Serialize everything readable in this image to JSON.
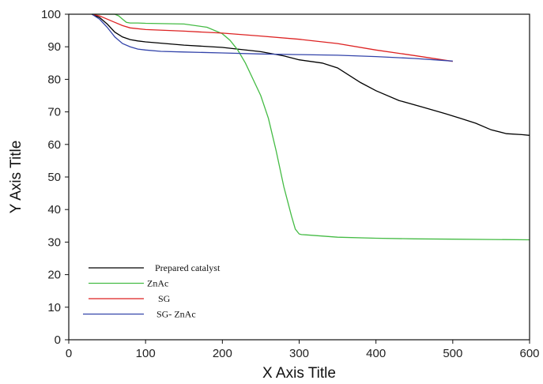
{
  "chart_data": {
    "type": "line",
    "title": "",
    "xlabel": "X Axis Title",
    "ylabel": "Y Axis Title",
    "xlim": [
      0,
      600
    ],
    "ylim": [
      0,
      100
    ],
    "xticks": [
      "0",
      "100",
      "200",
      "300",
      "400",
      "500",
      "600"
    ],
    "yticks": [
      "0",
      "10",
      "20",
      "30",
      "40",
      "50",
      "60",
      "70",
      "80",
      "90",
      "100"
    ],
    "grid": false,
    "legend_position": "bottom-left",
    "series": [
      {
        "name": "Prepared catalyst",
        "color": "#000000",
        "x": [
          30,
          40,
          50,
          60,
          70,
          80,
          90,
          100,
          150,
          200,
          250,
          280,
          300,
          330,
          350,
          380,
          400,
          430,
          460,
          490,
          510,
          530,
          550,
          570,
          590,
          600
        ],
        "y": [
          100,
          99,
          97,
          94.5,
          93,
          92.2,
          91.8,
          91.5,
          90.5,
          89.8,
          88.5,
          87.2,
          86,
          85,
          83.5,
          79,
          76.5,
          73.5,
          71.5,
          69.5,
          68,
          66.5,
          64.5,
          63.3,
          63,
          62.8
        ]
      },
      {
        "name": "ZnAc",
        "color": "#44bb44",
        "x": [
          30,
          60,
          65,
          70,
          75,
          80,
          90,
          100,
          150,
          180,
          200,
          210,
          220,
          230,
          240,
          250,
          260,
          270,
          280,
          290,
          295,
          300,
          303,
          310,
          350,
          400,
          450,
          500,
          550,
          600
        ],
        "y": [
          100,
          100,
          99.5,
          98.5,
          97.5,
          97.3,
          97.3,
          97.2,
          97,
          96,
          94,
          92,
          89,
          85,
          80,
          75,
          68,
          58,
          47,
          38,
          34,
          32.5,
          32.3,
          32.2,
          31.5,
          31.2,
          31,
          30.9,
          30.8,
          30.7
        ]
      },
      {
        "name": "SG",
        "color": "#dd2222",
        "x": [
          30,
          40,
          50,
          60,
          70,
          80,
          100,
          150,
          200,
          250,
          300,
          350,
          400,
          450,
          500
        ],
        "y": [
          100,
          99.5,
          98.5,
          97.5,
          96.5,
          95.8,
          95.3,
          94.8,
          94.2,
          93.3,
          92.3,
          91,
          89,
          87.3,
          85.5
        ]
      },
      {
        "name": "SG- ZnAc",
        "color": "#3344aa",
        "x": [
          30,
          40,
          50,
          60,
          70,
          80,
          90,
          100,
          120,
          150,
          200,
          250,
          300,
          350,
          400,
          450,
          500
        ],
        "y": [
          100,
          98.5,
          96,
          93,
          91,
          90,
          89.3,
          89,
          88.6,
          88.4,
          88.1,
          87.8,
          87.6,
          87.4,
          87,
          86.4,
          85.6
        ]
      }
    ]
  }
}
